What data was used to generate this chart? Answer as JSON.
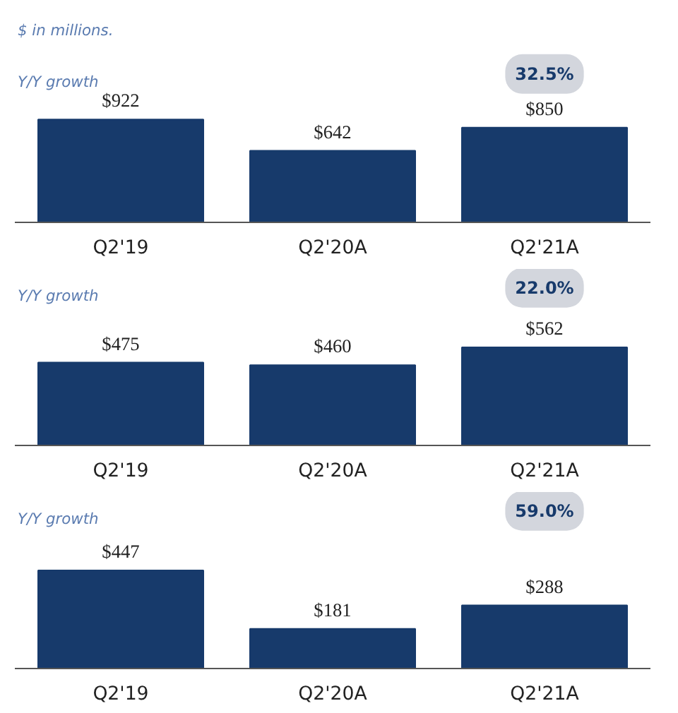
{
  "chart_data": [
    {
      "type": "bar",
      "categories": [
        "Q2'19",
        "Q2'20A",
        "Q2'21A"
      ],
      "values": [
        922,
        642,
        850
      ],
      "value_labels": [
        "$922",
        "$642",
        "$850"
      ],
      "color": "#173a6b",
      "grid": false,
      "annotations": [
        "$ in millions.",
        "Y/Y growth",
        "32.5%"
      ]
    },
    {
      "type": "bar",
      "categories": [
        "Q2'19",
        "Q2'20A",
        "Q2'21A"
      ],
      "values": [
        475,
        460,
        562
      ],
      "value_labels": [
        "$475",
        "$460",
        "$562"
      ],
      "color": "#173a6b",
      "grid": false,
      "annotations": [
        "Y/Y growth",
        "22.0%"
      ]
    },
    {
      "type": "bar",
      "categories": [
        "Q2'19",
        "Q2'20A",
        "Q2'21A"
      ],
      "values": [
        447,
        181,
        288
      ],
      "value_labels": [
        "$447",
        "$181",
        "$288"
      ],
      "color": "#173a6b",
      "grid": false,
      "annotations": [
        "Y/Y growth",
        "59.0%"
      ]
    }
  ]
}
